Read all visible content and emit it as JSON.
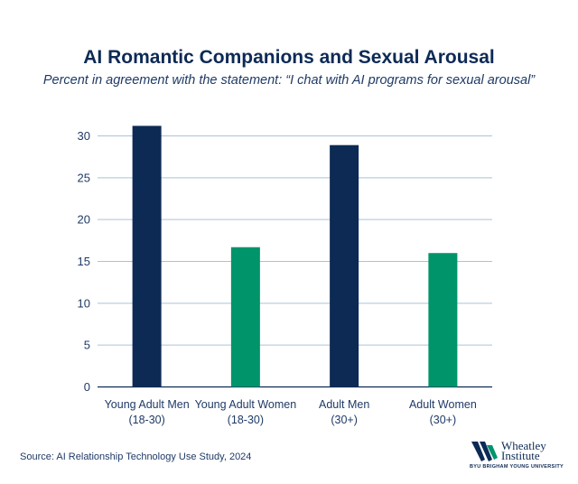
{
  "header": {
    "title": "AI Romantic Companions and Sexual Arousal",
    "subtitle": "Percent in agreement with the statement: “I chat with AI programs for sexual arousal”"
  },
  "chart_data": {
    "type": "bar",
    "categories": [
      [
        "Young Adult Men",
        "(18-30)"
      ],
      [
        "Young Adult Women",
        "(18-30)"
      ],
      [
        "Adult Men",
        "(30+)"
      ],
      [
        "Adult Women",
        "(30+)"
      ]
    ],
    "values": [
      31.2,
      16.7,
      28.9,
      16.0
    ],
    "bar_colors": [
      "#0d2a55",
      "#00946b",
      "#0d2a55",
      "#00946b"
    ],
    "yticks": [
      0,
      5,
      10,
      15,
      20,
      25,
      30
    ],
    "ylim": [
      0,
      30
    ],
    "grid": true,
    "gridline_color": "#a9c3d8"
  },
  "footer": {
    "source": "Source: AI Relationship Technology Use Study, 2024",
    "logo_line1": "Wheatley",
    "logo_line2": "Institute",
    "logo_sub": "BYU BRIGHAM YOUNG UNIVERSITY"
  }
}
